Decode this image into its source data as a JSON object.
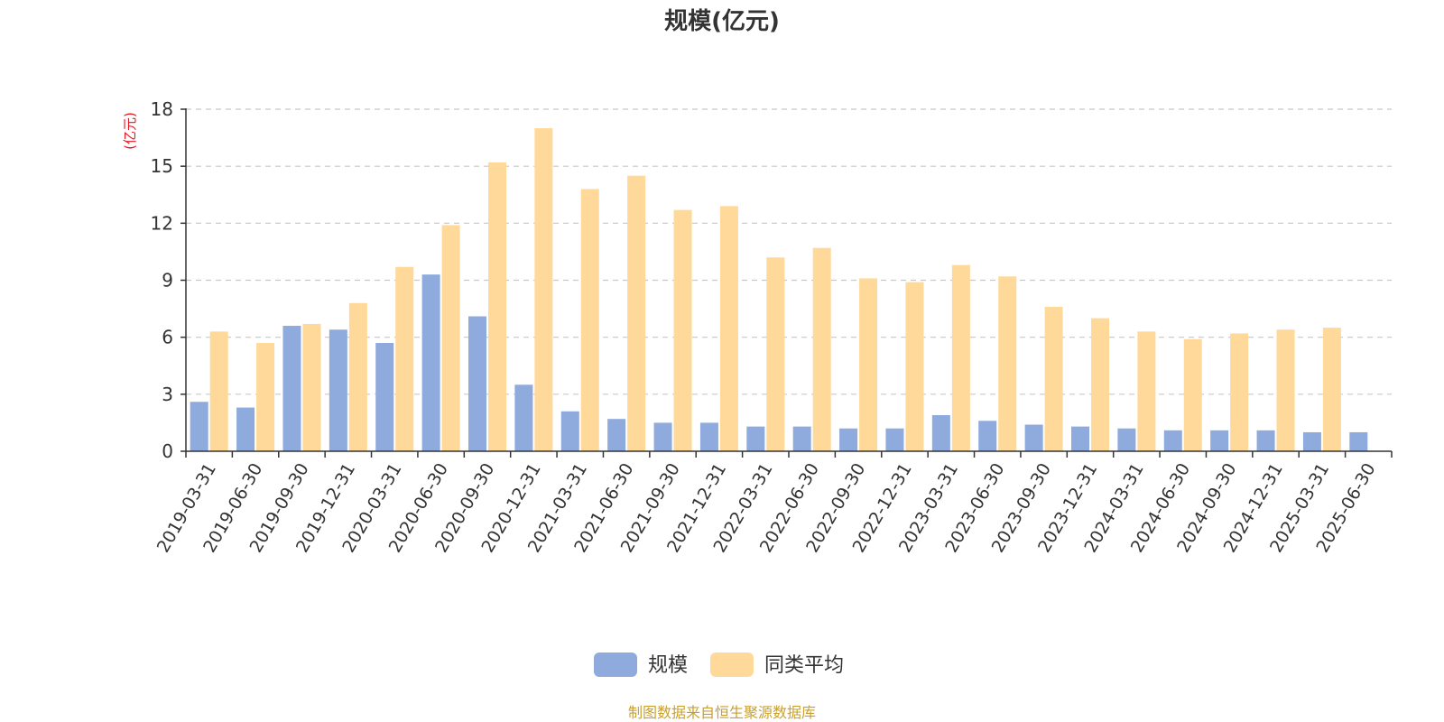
{
  "chart_data": {
    "type": "bar",
    "title": "规模(亿元)",
    "ylabel": "(亿元)",
    "ylim": [
      0,
      18
    ],
    "yticks": [
      0,
      3,
      6,
      9,
      12,
      15,
      18
    ],
    "grid": true,
    "legend_position": "bottom-center",
    "categories": [
      "2019-03-31",
      "2019-06-30",
      "2019-09-30",
      "2019-12-31",
      "2020-03-31",
      "2020-06-30",
      "2020-09-30",
      "2020-12-31",
      "2021-03-31",
      "2021-06-30",
      "2021-09-30",
      "2021-12-31",
      "2022-03-31",
      "2022-06-30",
      "2022-09-30",
      "2022-12-31",
      "2023-03-31",
      "2023-06-30",
      "2023-09-30",
      "2023-12-31",
      "2024-03-31",
      "2024-06-30",
      "2024-09-30",
      "2024-12-31",
      "2025-03-31",
      "2025-06-30"
    ],
    "series": [
      {
        "name": "规模",
        "color": "#8faadc",
        "values": [
          2.6,
          2.3,
          6.6,
          6.4,
          5.7,
          9.3,
          7.1,
          3.5,
          2.1,
          1.7,
          1.5,
          1.5,
          1.3,
          1.3,
          1.2,
          1.2,
          1.9,
          1.6,
          1.4,
          1.3,
          1.2,
          1.1,
          1.1,
          1.1,
          1.0,
          1.0
        ]
      },
      {
        "name": "同类平均",
        "color": "#ffd99a",
        "values": [
          6.3,
          5.7,
          6.7,
          7.8,
          9.7,
          11.9,
          15.2,
          17.0,
          13.8,
          14.5,
          12.7,
          12.9,
          10.2,
          10.7,
          9.1,
          8.9,
          9.8,
          9.2,
          7.6,
          7.0,
          6.3,
          5.9,
          6.2,
          6.4,
          6.5,
          null
        ]
      }
    ],
    "source_note": "制图数据来自恒生聚源数据库",
    "colors": {
      "unit_label": "#e8141e",
      "source_note": "#c9a02f",
      "axis": "#333333",
      "grid": "#c8c8c8"
    }
  }
}
